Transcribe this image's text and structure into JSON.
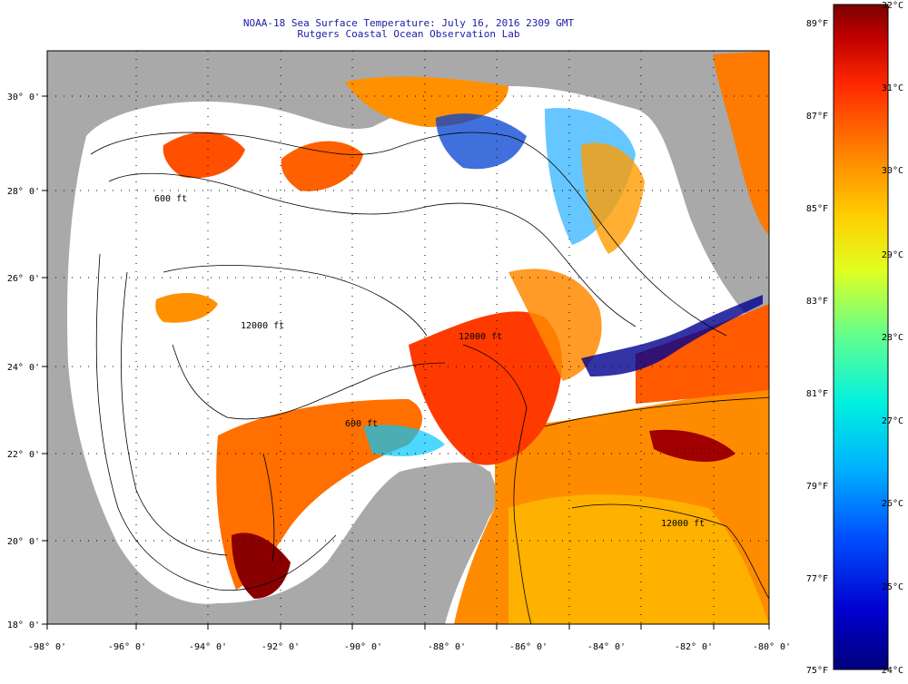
{
  "header": {
    "title_line1": "NOAA-18 Sea Surface Temperature:  July 16, 2016 2309 GMT",
    "title_line2": "Rutgers Coastal Ocean Observation Lab"
  },
  "map": {
    "lon_labels": [
      "-98° 0'",
      "-96° 0'",
      "-94° 0'",
      "-92° 0'",
      "-90° 0'",
      "-88° 0'",
      "-86° 0'",
      "-84° 0'",
      "-82° 0'",
      "-80° 0'"
    ],
    "lat_labels": [
      "18° 0'",
      "20° 0'",
      "22° 0'",
      "24° 0'",
      "26° 0'",
      "28° 0'",
      "30° 0'"
    ],
    "contour_labels": [
      "600 ft",
      "12000 ft",
      "12000 ft",
      "600 ft",
      "12000 ft"
    ]
  },
  "colorbar": {
    "celsius_labels": [
      "32°C",
      "31°C",
      "30°C",
      "29°C",
      "28°C",
      "27°C",
      "26°C",
      "25°C",
      "24°C"
    ],
    "fahrenheit_labels": [
      "89°F",
      "87°F",
      "85°F",
      "83°F",
      "81°F",
      "79°F",
      "77°F",
      "75°F"
    ],
    "colors": [
      "#00007a",
      "#0000d0",
      "#0050ff",
      "#00b0ff",
      "#00f0e0",
      "#60ff90",
      "#e0ff20",
      "#ffd000",
      "#ff8000",
      "#ff2800",
      "#c00000",
      "#7a0000"
    ]
  }
}
